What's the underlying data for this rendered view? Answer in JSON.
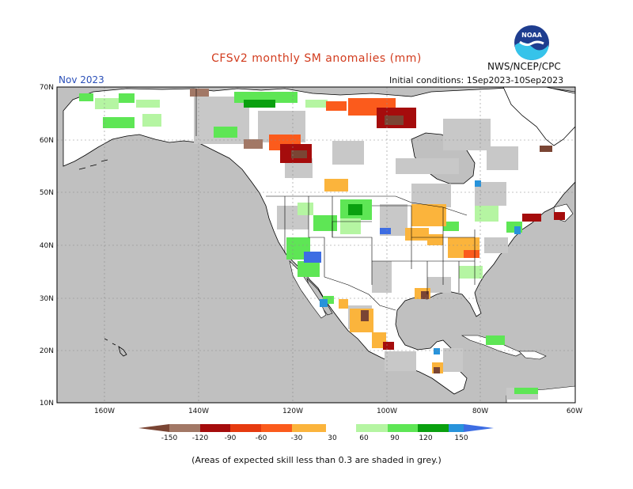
{
  "header": {
    "title": "CFSv2 monthly SM anomalies (mm)",
    "agency": "NWS/NCEP/CPC",
    "month": "Nov 2023",
    "initial_conditions": "Initial conditions: 1Sep2023-10Sep2023"
  },
  "logo": {
    "icon": "noaa-logo-icon",
    "text": "NOAA"
  },
  "axes": {
    "lat_labels": [
      "70N",
      "60N",
      "50N",
      "40N",
      "30N",
      "20N",
      "10N"
    ],
    "lon_labels": [
      "160W",
      "140W",
      "120W",
      "100W",
      "80W",
      "60W"
    ]
  },
  "legend": {
    "ticks": [
      "-150",
      "-120",
      "-90",
      "-60",
      "-30",
      "30",
      "60",
      "90",
      "120",
      "150"
    ],
    "colors": [
      "#7a4534",
      "#a27866",
      "#a50c0c",
      "#e63a0f",
      "#fb5b1c",
      "#fbb43c",
      "#ffffff",
      "#b5f5a2",
      "#5ee655",
      "#0aa00f",
      "#2893db",
      "#3d6de3"
    ]
  },
  "colors": {
    "ocean": "#c0c0c0",
    "low_skill_grey": "#c8c8c8",
    "land_neutral": "#ffffff",
    "grid": "#8c8c8c"
  },
  "footnote": "(Areas of expected skill less than 0.3 are shaded in grey.)"
}
